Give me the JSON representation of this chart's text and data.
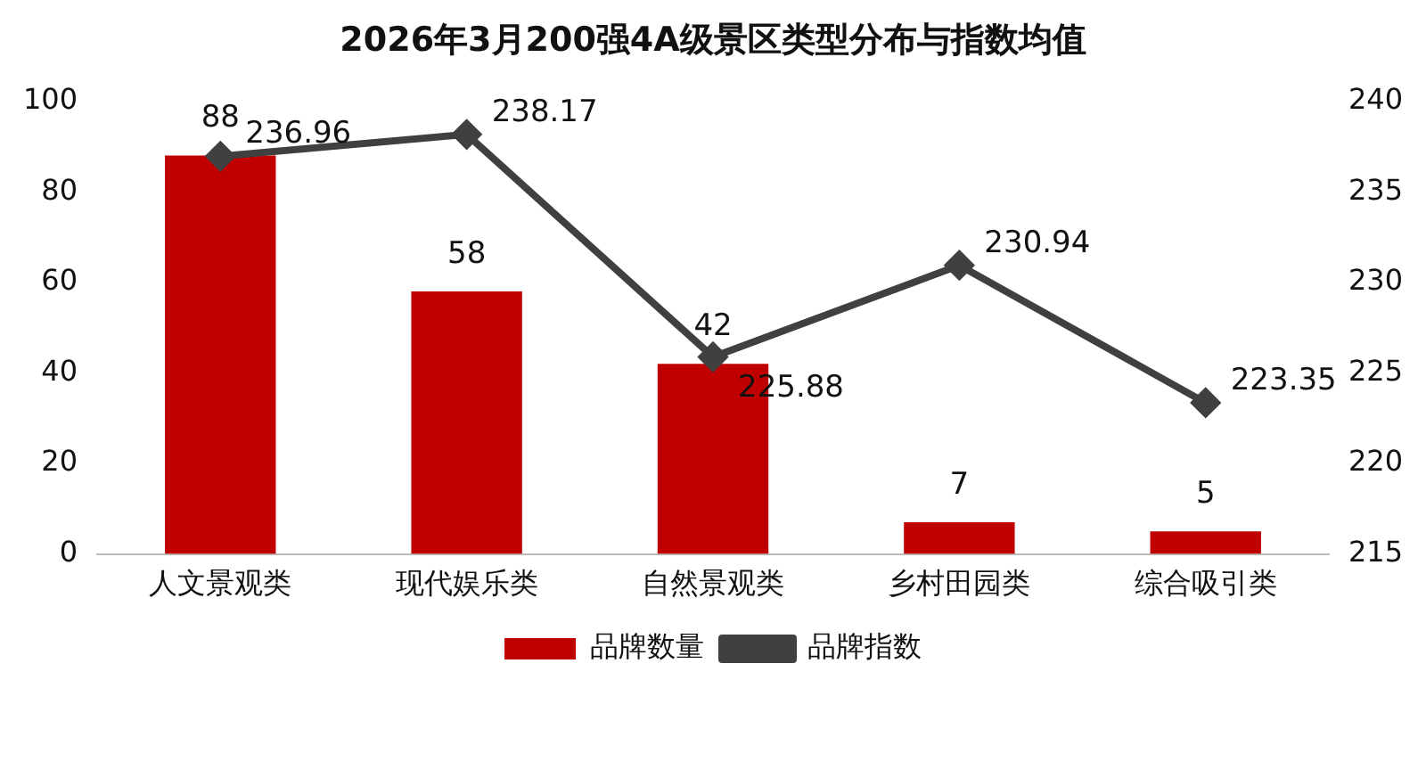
{
  "chart_data": {
    "type": "bar",
    "title": "2026年3月200强4A级景区类型分布与指数均值",
    "categories": [
      "人文景观类",
      "现代娱乐类",
      "自然景观类",
      "乡村田园类",
      "综合吸引类"
    ],
    "series": [
      {
        "name": "品牌数量",
        "color": "#c00000",
        "values": [
          88,
          58,
          42,
          7,
          5
        ]
      },
      {
        "name": "品牌指数",
        "type": "line",
        "axis": "y2",
        "color": "#404040",
        "values": [
          236.96,
          238.17,
          225.88,
          230.94,
          223.35
        ]
      }
    ],
    "ylim": [
      0,
      100
    ],
    "yticks": [
      0,
      20,
      40,
      60,
      80,
      100
    ],
    "y2lim": [
      215,
      240
    ],
    "y2ticks": [
      215,
      220,
      225,
      230,
      235,
      240
    ],
    "data_labels": true,
    "legend": "bottom",
    "marker": "diamond",
    "line_style": "solid",
    "grid": false
  }
}
